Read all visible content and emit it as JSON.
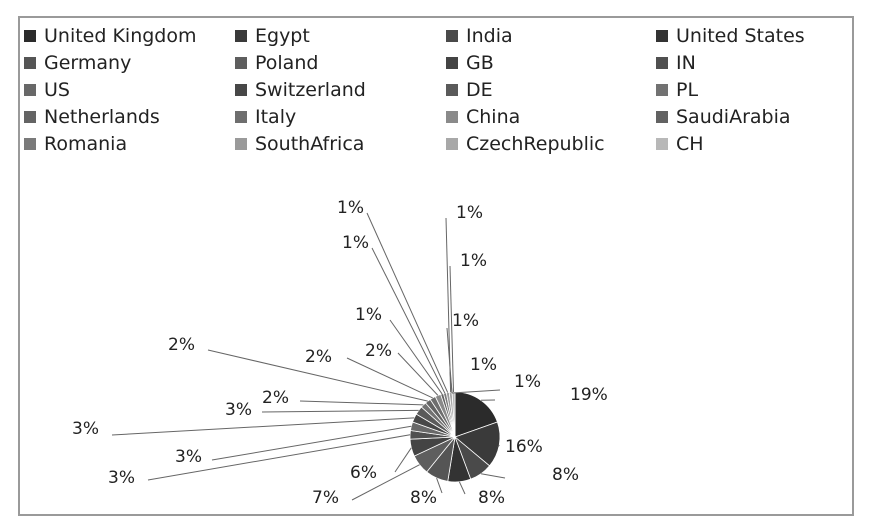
{
  "chart_data": {
    "type": "pie",
    "title": "",
    "legend_position": "top",
    "categories": [
      "United Kingdom",
      "Egypt",
      "India",
      "United States",
      "Germany",
      "Poland",
      "GB",
      "IN",
      "US",
      "Switzerland",
      "DE",
      "PL",
      "Netherlands",
      "Italy",
      "China",
      "SaudiArabia",
      "Romania",
      "SouthAfrica",
      "CzechRepublic",
      "CH"
    ],
    "values": [
      19,
      16,
      8,
      8,
      8,
      7,
      6,
      3,
      3,
      3,
      3,
      2,
      2,
      2,
      2,
      1,
      1,
      1,
      1,
      1
    ],
    "labels": [
      "19%",
      "16%",
      "8%",
      "8%",
      "8%",
      "7%",
      "6%",
      "3%",
      "3%",
      "3%",
      "3%",
      "2%",
      "2%",
      "2%",
      "2%",
      "1%",
      "1%",
      "1%",
      "1%",
      "1%"
    ],
    "colors": [
      "#2b2b2b",
      "#3a3a3a",
      "#4a4a4a",
      "#333333",
      "#555555",
      "#5e5e5e",
      "#444444",
      "#505050",
      "#686868",
      "#474747",
      "#5a5a5a",
      "#727272",
      "#646464",
      "#6e6e6e",
      "#8a8a8a",
      "#626262",
      "#7a7a7a",
      "#9a9a9a",
      "#a8a8a8",
      "#b8b8b8"
    ]
  }
}
